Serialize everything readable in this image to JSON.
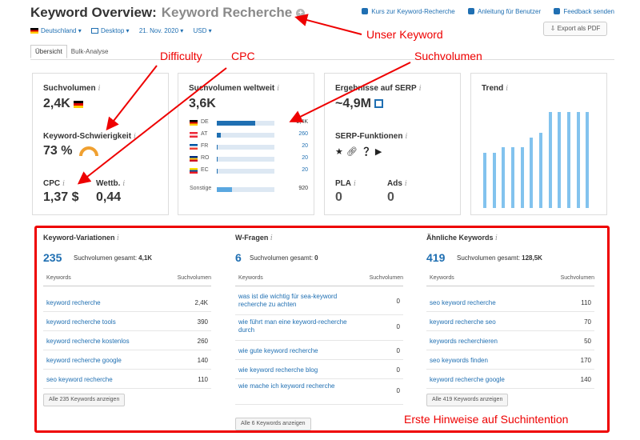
{
  "header": {
    "title": "Keyword Overview:",
    "keyword": "Keyword Recherche",
    "links": [
      "Kurs zur Keyword-Recherche",
      "Anleitung für Benutzer",
      "Feedback senden"
    ],
    "export_label": "Export als PDF"
  },
  "filters": {
    "country": "Deutschland",
    "device": "Desktop",
    "date": "21. Nov. 2020",
    "currency": "USD"
  },
  "tabs": [
    "Übersicht",
    "Bulk-Analyse"
  ],
  "cards": {
    "volume": {
      "label": "Suchvolumen",
      "value": "2,4K"
    },
    "difficulty": {
      "label": "Keyword-Schwierigkeit",
      "value": "73 %"
    },
    "cpc": {
      "label": "CPC",
      "value": "1,37 $"
    },
    "competition": {
      "label": "Wettb.",
      "value": "0,44"
    },
    "global": {
      "label": "Suchvolumen weltweit",
      "value": "3,6K",
      "countries": [
        {
          "code": "DE",
          "value": "2,4K",
          "share": 0.67,
          "flag": [
            "#000000",
            "#dd0000",
            "#ffce00"
          ]
        },
        {
          "code": "AT",
          "value": "260",
          "share": 0.07,
          "flag": [
            "#ed2939",
            "#ffffff",
            "#ed2939"
          ]
        },
        {
          "code": "FR",
          "value": "20",
          "share": 0.01,
          "flag": [
            "#0055a4",
            "#ffffff",
            "#ef4135"
          ]
        },
        {
          "code": "RO",
          "value": "20",
          "share": 0.01,
          "flag": [
            "#002b7f",
            "#fcd116",
            "#ce1126"
          ]
        },
        {
          "code": "EC",
          "value": "20",
          "share": 0.01,
          "flag": [
            "#ffdd00",
            "#034ea2",
            "#ed1c24"
          ]
        }
      ],
      "other_label": "Sonstige",
      "other_value": "920",
      "other_share": 0.26
    },
    "serp": {
      "label": "Ergebnisse auf SERP",
      "value": "~4,9M",
      "features_label": "SERP-Funktionen",
      "features": [
        "star-icon",
        "link-icon",
        "question-icon",
        "play-icon"
      ],
      "pla_label": "PLA",
      "pla_value": "0",
      "ads_label": "Ads",
      "ads_value": "0"
    },
    "trend": {
      "label": "Trend",
      "values": [
        0.55,
        0.55,
        0.6,
        0.6,
        0.6,
        0.7,
        0.75,
        0.95,
        0.95,
        0.95,
        0.95,
        0.95
      ]
    }
  },
  "annotations": {
    "keyword": "Unser Keyword",
    "difficulty": "Difficulty",
    "cpc": "CPC",
    "volume": "Suchvolumen",
    "intent": "Erste Hinweise auf Suchintention"
  },
  "columns": [
    {
      "title": "Keyword-Variationen",
      "count": "235",
      "sv_label": "Suchvolumen gesamt:",
      "sv_value": "4,1K",
      "th_keywords": "Keywords",
      "th_volume": "Suchvolumen",
      "rows": [
        {
          "k": "keyword recherche",
          "v": "2,4K"
        },
        {
          "k": "keyword recherche tools",
          "v": "390"
        },
        {
          "k": "keyword recherche kostenlos",
          "v": "260"
        },
        {
          "k": "keyword recherche google",
          "v": "140"
        },
        {
          "k": "seo keyword recherche",
          "v": "110"
        }
      ],
      "button": "Alle 235 Keywords anzeigen"
    },
    {
      "title": "W-Fragen",
      "count": "6",
      "sv_label": "Suchvolumen gesamt:",
      "sv_value": "0",
      "th_keywords": "Keywords",
      "th_volume": "Suchvolumen",
      "rows": [
        {
          "k": "was ist die wichtig für sea-keyword recherche zu achten",
          "v": "0"
        },
        {
          "k": "wie führt man eine keyword-recherche durch",
          "v": "0"
        },
        {
          "k": "wie gute keyword recherche",
          "v": "0"
        },
        {
          "k": "wie keyword recherche blog",
          "v": "0"
        },
        {
          "k": "wie mache ich keyword recherche",
          "v": "0"
        }
      ],
      "button": "Alle 6 Keywords anzeigen"
    },
    {
      "title": "Ähnliche Keywords",
      "count": "419",
      "sv_label": "Suchvolumen gesamt:",
      "sv_value": "128,5K",
      "th_keywords": "Keywords",
      "th_volume": "Suchvolumen",
      "rows": [
        {
          "k": "seo keyword recherche",
          "v": "110"
        },
        {
          "k": "keyword recherche seo",
          "v": "70"
        },
        {
          "k": "keywords recherchieren",
          "v": "50"
        },
        {
          "k": "seo keywords finden",
          "v": "170"
        },
        {
          "k": "keyword recherche google",
          "v": "140"
        }
      ],
      "button": "Alle 419 Keywords anzeigen"
    }
  ],
  "colors": {
    "accent": "#1f6fb2",
    "annotation": "#ee0000",
    "trend": "#82c3ee"
  }
}
